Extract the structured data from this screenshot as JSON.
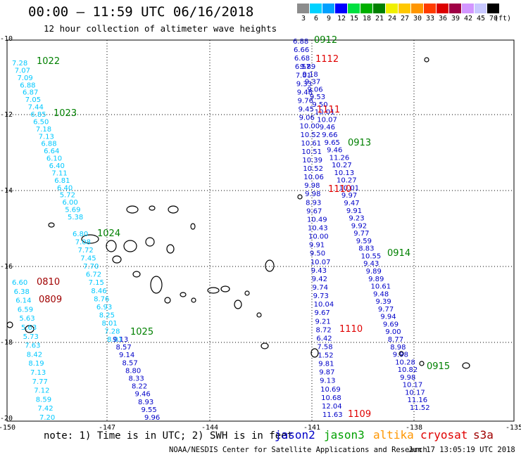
{
  "header": {
    "title": "00:00 — 11:59 UTC 06/16/2018",
    "subtitle": "12 hour collection of altimeter wave heights"
  },
  "colorbar": {
    "unit": "(ft)",
    "labels": [
      "3",
      "6",
      "9",
      "12",
      "15",
      "18",
      "21",
      "24",
      "27",
      "30",
      "33",
      "36",
      "39",
      "42",
      "45",
      "70"
    ],
    "colors": [
      "#8c8c8c",
      "#00d2ff",
      "#00a0ff",
      "#0000ff",
      "#00e040",
      "#00b000",
      "#008000",
      "#f0f000",
      "#ffc800",
      "#ff9600",
      "#ff3c00",
      "#dc0000",
      "#a00046",
      "#d296ff",
      "#c8c8ff",
      "#000000"
    ]
  },
  "axes": {
    "x_ticks": [
      "-150",
      "-147",
      "-144",
      "-141",
      "-138",
      "-135"
    ],
    "y_ticks": [
      "-10",
      "-12",
      "-14",
      "-16",
      "-18",
      "-20"
    ]
  },
  "tracks": [
    {
      "labels": [
        "7.28",
        "7.07",
        "7.09",
        "6.88",
        "6.87",
        "7.05",
        "7.44",
        "6.85",
        "6.50",
        "7.18",
        "7.13",
        "6.88",
        "6.64",
        "6.10",
        "6.40",
        "7.11",
        "6.81",
        "6.40",
        "5.72",
        "6.00",
        "5.69",
        "5.38"
      ],
      "color": "#00c8ff"
    },
    {
      "labels": [
        "6.80",
        "7.08",
        "7.72",
        "7.45",
        "7.70",
        "6.72",
        "7.15",
        "8.46",
        "8.76",
        "6.93",
        "8.25",
        "8.01",
        "7.28",
        "8.01"
      ],
      "color": "#00c8ff"
    },
    {
      "labels": [
        "9.13",
        "8.57",
        "9.14",
        "8.57",
        "8.80",
        "8.33",
        "8.22",
        "9.46",
        "8.93",
        "9.55",
        "9.96"
      ],
      "color": "#0000c8"
    },
    {
      "labels": [
        "6.60",
        "6.38",
        "6.14",
        "6.59",
        "5.63",
        "5.63",
        "5.73",
        "7.63",
        "8.42",
        "8.19",
        "7.13",
        "7.77",
        "7.12",
        "8.59",
        "7.42",
        "7.20"
      ],
      "color": "#00c8ff"
    },
    {
      "labels": [
        "6.88",
        "6.66",
        "6.68",
        "6.57",
        "7.01",
        "9.33",
        "9.48",
        "9.76",
        "9.45",
        "9.06",
        "10.00",
        "10.52",
        "10.61",
        "10.51",
        "10.39",
        "10.52",
        "10.06",
        "9.98",
        "9.98",
        "8.93",
        "9.67",
        "10.49",
        "10.43",
        "10.00",
        "9.91",
        "9.50",
        "10.07",
        "9.43",
        "9.42",
        "9.74",
        "9.73",
        "10.04",
        "9.67",
        "9.21",
        "8.72",
        "6.42",
        "7.58",
        "1.52",
        "9.81",
        "9.87",
        "9.13",
        "10.69",
        "10.68",
        "12.04",
        "11.63"
      ],
      "color": "#0000c8"
    },
    {
      "labels": [
        "9.89",
        "9.18",
        "9.37",
        "9.06",
        "9.53",
        "9.50",
        "10.01",
        "10.07",
        "9.46",
        "9.66",
        "9.65",
        "9.46",
        "11.26",
        "10.27",
        "10.13",
        "10.27",
        "10.01",
        "9.97",
        "9.47",
        "9.91",
        "9.23",
        "9.92",
        "9.77",
        "9.59",
        "8.83",
        "10.55",
        "9.43",
        "9.89",
        "9.89",
        "10.61",
        "9.48",
        "9.39",
        "9.77",
        "9.94",
        "9.69",
        "9.00",
        "8.77",
        "8.98",
        "9.98",
        "10.28",
        "10.82",
        "9.98",
        "10.17",
        "10.17",
        "11.16",
        "11.52"
      ],
      "color": "#0000c8"
    }
  ],
  "time_labels": [
    {
      "text": "1022",
      "color": "#008000"
    },
    {
      "text": "1023",
      "color": "#008000"
    },
    {
      "text": "1024",
      "color": "#008000"
    },
    {
      "text": "1025",
      "color": "#008000"
    },
    {
      "text": "0810",
      "color": "#a00000"
    },
    {
      "text": "0809",
      "color": "#a00000"
    },
    {
      "text": "0912",
      "color": "#008000"
    },
    {
      "text": "1112",
      "color": "#e00000"
    },
    {
      "text": "1111",
      "color": "#e00000"
    },
    {
      "text": "0913",
      "color": "#008000"
    },
    {
      "text": "1110",
      "color": "#e00000"
    },
    {
      "text": "0914",
      "color": "#008000"
    },
    {
      "text": "1110",
      "color": "#e00000"
    },
    {
      "text": "0915",
      "color": "#008000"
    },
    {
      "text": "1109",
      "color": "#e00000"
    }
  ],
  "note": "note: 1) Time is in UTC; 2) SWH is in feet",
  "legend": [
    {
      "name": "jason2",
      "color": "#0000c8"
    },
    {
      "name": "jason3",
      "color": "#00a000"
    },
    {
      "name": "altika",
      "color": "#ff9600"
    },
    {
      "name": "cryosat",
      "color": "#e00000"
    },
    {
      "name": "s3a",
      "color": "#a00000"
    }
  ],
  "footer": {
    "credit": "NOAA/NESDIS Center for Satellite Applications and Research",
    "generated": "Jun 17 13:05:19 UTC 2018"
  }
}
